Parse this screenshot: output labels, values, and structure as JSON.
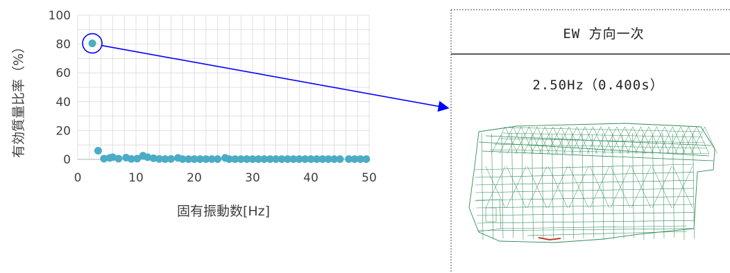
{
  "chart_data": {
    "type": "scatter",
    "title": "",
    "xlabel": "固有振動数[Hz]",
    "ylabel": "有効質量比率（%）",
    "xlim": [
      0,
      50
    ],
    "ylim": [
      0,
      100
    ],
    "x_ticks": [
      "0",
      "10",
      "20",
      "30",
      "40",
      "50"
    ],
    "y_ticks": [
      "0",
      "20",
      "40",
      "60",
      "80",
      "100"
    ],
    "grid": true,
    "marker_color": "#4bacc6",
    "series": [
      {
        "x": [
          2.5,
          3.5,
          4.5,
          5.5,
          6.0,
          7.0,
          8.3,
          9.2,
          10.2,
          11.2,
          12.0,
          13.0,
          14.0,
          15.0,
          16.0,
          17.2,
          18.0,
          19.0,
          20.0,
          21.0,
          22.0,
          23.0,
          24.0,
          25.3,
          26.0,
          27.0,
          28.0,
          29.0,
          30.0,
          31.0,
          32.0,
          33.0,
          34.0,
          35.0,
          36.0,
          37.0,
          38.0,
          39.0,
          40.0,
          41.0,
          42.0,
          43.0,
          44.0,
          45.0,
          46.5,
          47.5,
          48.5,
          49.5
        ],
        "y": [
          80.5,
          6.0,
          0.5,
          1.0,
          1.5,
          0.5,
          1.2,
          0.3,
          0.5,
          2.5,
          1.5,
          0.8,
          0.3,
          0.2,
          0.3,
          1.0,
          0.2,
          0.2,
          0.2,
          0.2,
          0.2,
          0.2,
          0.2,
          1.0,
          0.2,
          0.2,
          0.2,
          0.2,
          0.2,
          0.2,
          0.2,
          0.2,
          0.2,
          0.2,
          0.2,
          0.2,
          0.2,
          0.2,
          0.2,
          0.2,
          0.2,
          0.2,
          0.2,
          0.2,
          0.2,
          0.2,
          0.2,
          0.2
        ]
      }
    ],
    "annotation": {
      "highlight_x": 2.5,
      "highlight_y": 80.5,
      "arrow_color": "#0000ff",
      "mode_box": {
        "title": "EW 方向一次",
        "subtitle": "2.50Hz（0.400s）"
      }
    }
  }
}
